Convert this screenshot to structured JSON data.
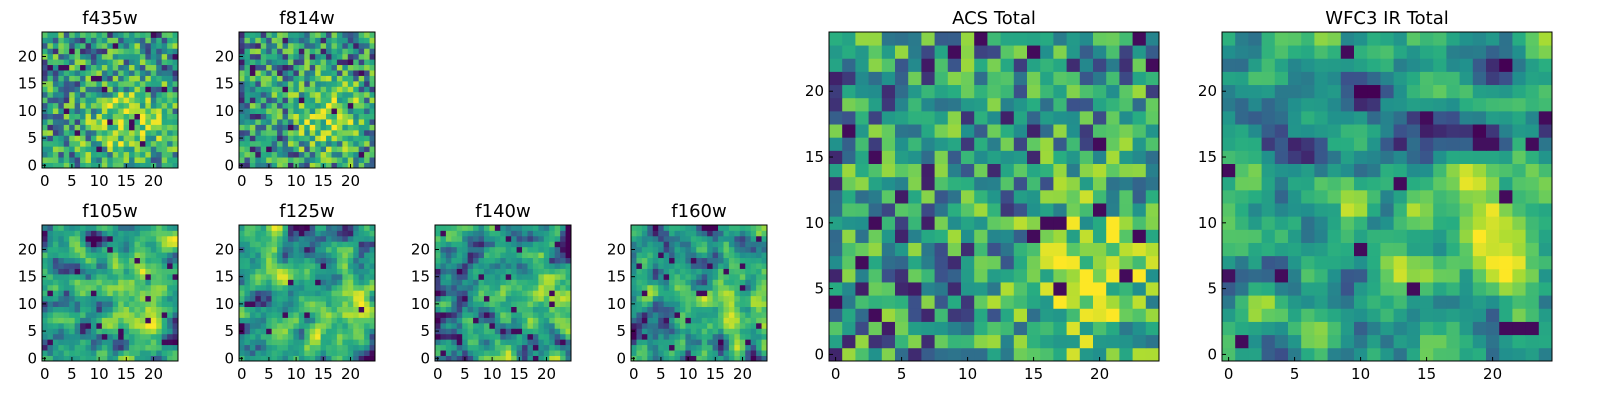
{
  "figure": {
    "background": "#ffffff",
    "colormap": [
      "#440154",
      "#3b528b",
      "#21908d",
      "#27ad81",
      "#5dc963",
      "#aadc32",
      "#fde725"
    ]
  },
  "chart_data": [
    {
      "type": "heatmap",
      "title": "f435w",
      "grid": [
        25,
        25
      ],
      "xlim": [
        -0.5,
        24.5
      ],
      "ylim": [
        -0.5,
        24.5
      ],
      "xticks": [
        0,
        5,
        10,
        15,
        20
      ],
      "yticks": [
        0,
        5,
        10,
        15,
        20
      ],
      "values_note": "pixel values are visual noise; reproduced procedurally",
      "seed": 11,
      "texture": "noise",
      "bias": 0.68,
      "bright_spot": [
        15,
        8
      ]
    },
    {
      "type": "heatmap",
      "title": "f814w",
      "grid": [
        25,
        25
      ],
      "xlim": [
        -0.5,
        24.5
      ],
      "ylim": [
        -0.5,
        24.5
      ],
      "xticks": [
        0,
        5,
        10,
        15,
        20
      ],
      "yticks": [
        0,
        5,
        10,
        15,
        20
      ],
      "seed": 23,
      "texture": "noise",
      "bias": 0.6,
      "bright_spot": [
        16,
        9
      ]
    },
    {
      "type": "heatmap",
      "title": "f105w",
      "grid": [
        25,
        25
      ],
      "xlim": [
        -0.5,
        24.5
      ],
      "ylim": [
        -0.5,
        24.5
      ],
      "xticks": [
        0,
        5,
        10,
        15,
        20
      ],
      "yticks": [
        0,
        5,
        10,
        15,
        20
      ],
      "seed": 37,
      "texture": "smooth",
      "bias": 0.55,
      "bright_spot": [
        18,
        9
      ]
    },
    {
      "type": "heatmap",
      "title": "f125w",
      "grid": [
        25,
        25
      ],
      "xlim": [
        -0.5,
        24.5
      ],
      "ylim": [
        -0.5,
        24.5
      ],
      "xticks": [
        0,
        5,
        10,
        15,
        20
      ],
      "yticks": [
        0,
        5,
        10,
        15,
        20
      ],
      "seed": 41,
      "texture": "smooth",
      "bias": 0.57,
      "bright_spot": [
        18,
        8
      ]
    },
    {
      "type": "heatmap",
      "title": "f140w",
      "grid": [
        25,
        25
      ],
      "xlim": [
        -0.5,
        24.5
      ],
      "ylim": [
        -0.5,
        24.5
      ],
      "xticks": [
        0,
        5,
        10,
        15,
        20
      ],
      "yticks": [
        0,
        5,
        10,
        15,
        20
      ],
      "seed": 53,
      "texture": "smooth",
      "bias": 0.5,
      "bright_spot": [
        19,
        9
      ]
    },
    {
      "type": "heatmap",
      "title": "f160w",
      "grid": [
        25,
        25
      ],
      "xlim": [
        -0.5,
        24.5
      ],
      "ylim": [
        -0.5,
        24.5
      ],
      "xticks": [
        0,
        5,
        10,
        15,
        20
      ],
      "yticks": [
        0,
        5,
        10,
        15,
        20
      ],
      "seed": 67,
      "texture": "smooth",
      "bias": 0.5,
      "bright_spot": [
        20,
        9
      ]
    },
    {
      "type": "heatmap",
      "title": "ACS Total",
      "grid": [
        25,
        25
      ],
      "xlim": [
        -0.5,
        24.5
      ],
      "ylim": [
        -0.5,
        24.5
      ],
      "xticks": [
        0,
        5,
        10,
        15,
        20
      ],
      "yticks": [
        0,
        5,
        10,
        15,
        20
      ],
      "seed": 79,
      "texture": "noise",
      "bias": 0.6,
      "bright_spot": [
        20,
        6
      ]
    },
    {
      "type": "heatmap",
      "title": "WFC3 IR Total",
      "grid": [
        25,
        25
      ],
      "xlim": [
        -0.5,
        24.5
      ],
      "ylim": [
        -0.5,
        24.5
      ],
      "xticks": [
        0,
        5,
        10,
        15,
        20
      ],
      "yticks": [
        0,
        5,
        10,
        15,
        20
      ],
      "seed": 97,
      "texture": "smooth",
      "bias": 0.55,
      "bright_spot": [
        19,
        9
      ]
    }
  ]
}
